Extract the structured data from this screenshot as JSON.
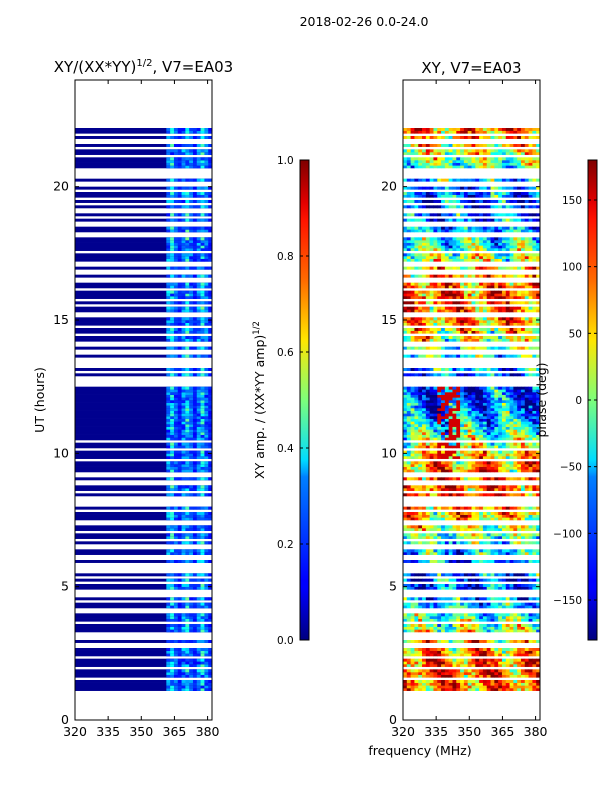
{
  "suptitle": "2018-02-26 0.0-24.0",
  "xlabel": "frequency (MHz)",
  "colormap": "jet",
  "chart_data": [
    {
      "type": "heatmap",
      "id": "norm",
      "title": "XY/(XX*YY)",
      "title_exponent": "1/2",
      "title_suffix": ", V7=EA03",
      "xlabel": "",
      "ylabel": "UT (hours)",
      "xlim": [
        320,
        382
      ],
      "ylim": [
        0,
        24
      ],
      "xticks": [
        320,
        335,
        350,
        365,
        380
      ],
      "yticks": [
        0,
        5,
        10,
        15,
        20
      ],
      "data_range_hours": [
        1.1,
        22.2
      ],
      "active_band_mhz": [
        361,
        382
      ],
      "colorbar": {
        "label": "XY amp. / (XX*YY amp)",
        "label_exponent": "1/2",
        "range": [
          0.0,
          1.0
        ],
        "ticks": [
          "0.0",
          "0.2",
          "0.4",
          "0.6",
          "0.8",
          "1.0"
        ],
        "tick_values": [
          0.0,
          0.2,
          0.4,
          0.6,
          0.8,
          1.0
        ]
      }
    },
    {
      "type": "heatmap",
      "id": "phase",
      "title": "XY, V7=EA03",
      "xlabel": "",
      "ylabel": "",
      "xlim": [
        320,
        382
      ],
      "ylim": [
        0,
        24
      ],
      "xticks": [
        320,
        335,
        350,
        365,
        380
      ],
      "yticks": [
        0,
        5,
        10,
        15,
        20
      ],
      "data_range_hours": [
        1.1,
        22.2
      ],
      "colorbar": {
        "label": "phase (deg)",
        "range": [
          -180,
          180
        ],
        "ticks": [
          "−150",
          "−100",
          "−50",
          "0",
          "50",
          "100",
          "150"
        ],
        "tick_values": [
          -150,
          -100,
          -50,
          0,
          50,
          100,
          150
        ]
      }
    }
  ],
  "gap_rows_hours": [
    1.5,
    1.9,
    2.3,
    2.75,
    3.05,
    3.2,
    3.6,
    4.05,
    4.4,
    4.6,
    4.75,
    5.1,
    5.3,
    5.55,
    5.75,
    6.05,
    6.45,
    6.7,
    7.0,
    7.35,
    7.8,
    8.05,
    8.25,
    8.5,
    8.85,
    9.15,
    9.7,
    10.1,
    10.4,
    12.55,
    12.75,
    13.0,
    13.25,
    13.45,
    13.75,
    14.05,
    14.4,
    14.7,
    15.15,
    15.5,
    15.7,
    16.1,
    16.45,
    16.75,
    17.05,
    17.5,
    18.15,
    18.55,
    18.8,
    19.05,
    19.3,
    19.5,
    19.8,
    20.05,
    20.35,
    20.55,
    21.1,
    21.4,
    21.65,
    21.9
  ]
}
